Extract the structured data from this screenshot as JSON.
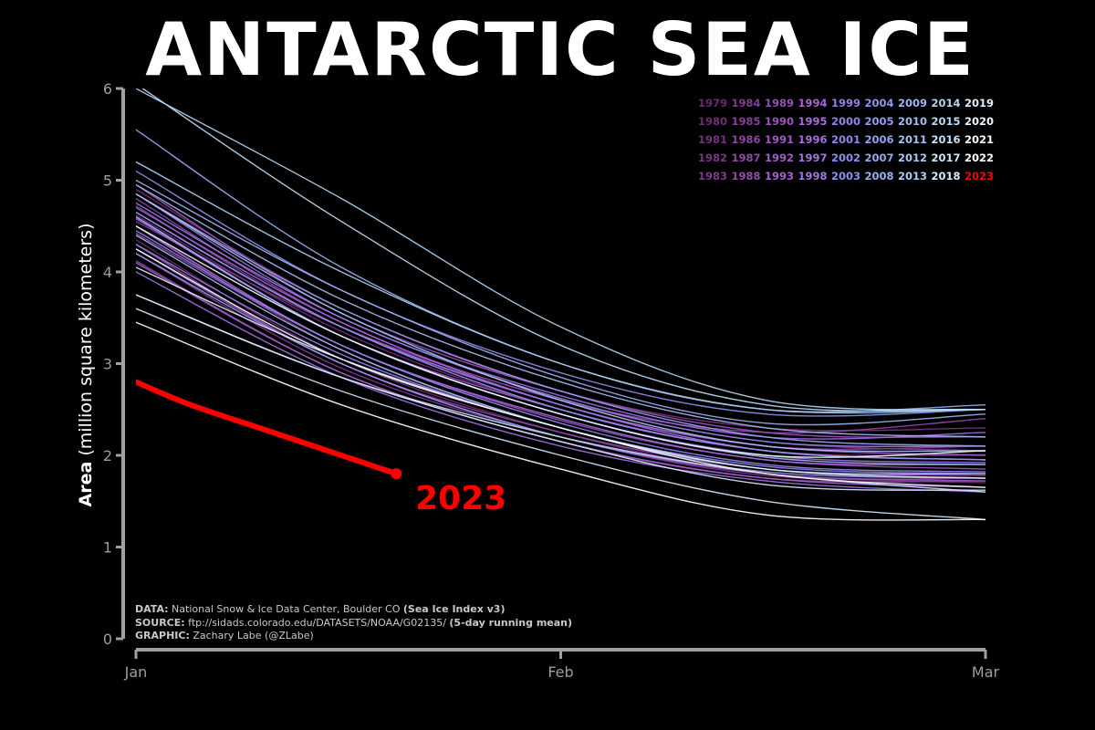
{
  "title": "ANTARCTIC SEA ICE",
  "ylabel_bold": "Area",
  "ylabel_rest": " (million square kilometers)",
  "source": {
    "line1_label": "DATA:",
    "line1_text": " National Snow & Ice Data Center, Boulder CO ",
    "line1_extra": "(Sea Ice Index v3)",
    "line2_label": "SOURCE:",
    "line2_text": " ftp://sidads.colorado.edu/DATASETS/NOAA/G02135/ ",
    "line2_extra": "(5-day running mean)",
    "line3_label": "GRAPHIC:",
    "line3_text": " Zachary Labe (@ZLabe)"
  },
  "highlight_label": "2023",
  "colors": {
    "background": "#000000",
    "axis": "#a0a0a0",
    "highlight": "#ff0000"
  },
  "chart_data": {
    "type": "line",
    "x_tick_labels": [
      "Jan",
      "Feb",
      "Mar"
    ],
    "x_tick_days": [
      1,
      32,
      63
    ],
    "xlim": [
      1,
      63
    ],
    "y_ticks": [
      0,
      1,
      2,
      3,
      4,
      5,
      6
    ],
    "ylim": [
      0,
      6
    ],
    "legend": {
      "placement": "top-right",
      "years": [
        [
          1979,
          1984,
          1989,
          1994,
          1999,
          2004,
          2009,
          2014,
          2019
        ],
        [
          1980,
          1985,
          1990,
          1995,
          2000,
          2005,
          2010,
          2015,
          2020
        ],
        [
          1981,
          1986,
          1991,
          1996,
          2001,
          2006,
          2011,
          2016,
          2021
        ],
        [
          1982,
          1987,
          1992,
          1997,
          2002,
          2007,
          2012,
          2017,
          2022
        ],
        [
          1983,
          1988,
          1993,
          1998,
          2003,
          2008,
          2013,
          2018,
          2023
        ]
      ]
    },
    "series": [
      {
        "name": "1979",
        "x": [
          1,
          16,
          32,
          47,
          63
        ],
        "values": [
          4.35,
          3.05,
          2.25,
          1.8,
          1.7
        ]
      },
      {
        "name": "1980",
        "x": [
          1,
          16,
          32,
          47,
          63
        ],
        "values": [
          4.62,
          3.35,
          2.5,
          2.05,
          2.0
        ]
      },
      {
        "name": "1981",
        "x": [
          1,
          16,
          32,
          47,
          63
        ],
        "values": [
          4.9,
          3.6,
          2.7,
          2.3,
          2.3
        ]
      },
      {
        "name": "1982",
        "x": [
          1,
          16,
          32,
          47,
          63
        ],
        "values": [
          4.5,
          3.15,
          2.3,
          1.85,
          1.8
        ]
      },
      {
        "name": "1983",
        "x": [
          1,
          16,
          32,
          47,
          63
        ],
        "values": [
          4.2,
          2.95,
          2.2,
          1.78,
          1.75
        ]
      },
      {
        "name": "1984",
        "x": [
          1,
          16,
          32,
          47,
          63
        ],
        "values": [
          4.55,
          3.4,
          2.6,
          2.15,
          2.05
        ]
      },
      {
        "name": "1985",
        "x": [
          1,
          16,
          32,
          47,
          63
        ],
        "values": [
          4.72,
          3.4,
          2.55,
          2.1,
          2.1
        ]
      },
      {
        "name": "1986",
        "x": [
          1,
          16,
          32,
          47,
          63
        ],
        "values": [
          4.12,
          2.9,
          2.15,
          1.75,
          1.72
        ]
      },
      {
        "name": "1987",
        "x": [
          1,
          16,
          32,
          47,
          63
        ],
        "values": [
          4.8,
          3.45,
          2.6,
          2.25,
          2.4
        ]
      },
      {
        "name": "1988",
        "x": [
          1,
          16,
          32,
          47,
          63
        ],
        "values": [
          4.3,
          3.0,
          2.25,
          1.85,
          1.78
        ]
      },
      {
        "name": "1989",
        "x": [
          1,
          16,
          32,
          47,
          63
        ],
        "values": [
          4.42,
          3.2,
          2.38,
          1.95,
          1.85
        ]
      },
      {
        "name": "1990",
        "x": [
          1,
          16,
          32,
          47,
          63
        ],
        "values": [
          4.95,
          3.55,
          2.7,
          2.25,
          2.2
        ]
      },
      {
        "name": "1991",
        "x": [
          1,
          16,
          32,
          47,
          63
        ],
        "values": [
          4.25,
          3.0,
          2.2,
          1.8,
          1.72
        ]
      },
      {
        "name": "1992",
        "x": [
          1,
          16,
          32,
          47,
          63
        ],
        "values": [
          4.6,
          3.3,
          2.5,
          2.05,
          1.95
        ]
      },
      {
        "name": "1993",
        "x": [
          1,
          16,
          32,
          47,
          63
        ],
        "values": [
          4.1,
          2.9,
          2.15,
          1.75,
          1.65
        ]
      },
      {
        "name": "1994",
        "x": [
          1,
          16,
          32,
          47,
          63
        ],
        "values": [
          4.7,
          3.45,
          2.55,
          2.1,
          2.0
        ]
      },
      {
        "name": "1995",
        "x": [
          1,
          16,
          32,
          47,
          63
        ],
        "values": [
          4.5,
          3.2,
          2.4,
          1.95,
          1.9
        ]
      },
      {
        "name": "1996",
        "x": [
          1,
          16,
          32,
          47,
          63
        ],
        "values": [
          4.85,
          3.5,
          2.65,
          2.2,
          2.25
        ]
      },
      {
        "name": "1997",
        "x": [
          1,
          16,
          32,
          47,
          63
        ],
        "values": [
          4.0,
          2.85,
          2.1,
          1.72,
          1.6
        ]
      },
      {
        "name": "1998",
        "x": [
          1,
          16,
          32,
          47,
          63
        ],
        "values": [
          4.58,
          3.3,
          2.45,
          2.0,
          1.92
        ]
      },
      {
        "name": "1999",
        "x": [
          1,
          16,
          32,
          47,
          63
        ],
        "values": [
          4.65,
          3.4,
          2.55,
          2.05,
          1.95
        ]
      },
      {
        "name": "2000",
        "x": [
          1,
          16,
          32,
          47,
          63
        ],
        "values": [
          4.3,
          3.1,
          2.3,
          1.88,
          1.8
        ]
      },
      {
        "name": "2001",
        "x": [
          1,
          16,
          32,
          47,
          63
        ],
        "values": [
          4.75,
          3.5,
          2.62,
          2.15,
          2.1
        ]
      },
      {
        "name": "2002",
        "x": [
          1,
          16,
          32,
          47,
          63
        ],
        "values": [
          4.45,
          3.2,
          2.35,
          1.9,
          1.82
        ]
      },
      {
        "name": "2003",
        "x": [
          1,
          16,
          32,
          47,
          63
        ],
        "values": [
          5.1,
          3.8,
          2.9,
          2.45,
          2.5
        ]
      },
      {
        "name": "2004",
        "x": [
          1,
          16,
          32,
          47,
          63
        ],
        "values": [
          4.65,
          3.4,
          2.5,
          2.05,
          1.95
        ]
      },
      {
        "name": "2005",
        "x": [
          1,
          16,
          32,
          47,
          63
        ],
        "values": [
          4.2,
          3.0,
          2.2,
          1.82,
          1.75
        ]
      },
      {
        "name": "2006",
        "x": [
          1,
          16,
          32,
          47,
          63
        ],
        "values": [
          4.85,
          3.6,
          2.7,
          2.2,
          2.1
        ]
      },
      {
        "name": "2007",
        "x": [
          1,
          16,
          32,
          47,
          63
        ],
        "values": [
          5.55,
          4.05,
          3.0,
          2.5,
          2.55
        ]
      },
      {
        "name": "2008",
        "x": [
          1,
          16,
          32,
          47,
          63
        ],
        "values": [
          5.0,
          3.8,
          2.85,
          2.35,
          2.45
        ]
      },
      {
        "name": "2009",
        "x": [
          1,
          16,
          32,
          47,
          63
        ],
        "values": [
          4.6,
          3.3,
          2.45,
          1.98,
          1.9
        ]
      },
      {
        "name": "2010",
        "x": [
          1,
          16,
          32,
          47,
          63
        ],
        "values": [
          4.95,
          3.7,
          2.8,
          2.3,
          2.2
        ]
      },
      {
        "name": "2011",
        "x": [
          1,
          16,
          32,
          47,
          63
        ],
        "values": [
          4.4,
          3.15,
          2.3,
          1.85,
          1.8
        ]
      },
      {
        "name": "2012",
        "x": [
          1,
          16,
          32,
          47,
          63
        ],
        "values": [
          4.85,
          3.55,
          2.6,
          2.1,
          2.05
        ]
      },
      {
        "name": "2013",
        "x": [
          1,
          16,
          32,
          47,
          63
        ],
        "values": [
          5.2,
          4.0,
          3.0,
          2.5,
          2.5
        ]
      },
      {
        "name": "2014",
        "x": [
          1,
          16,
          32,
          47,
          63
        ],
        "values": [
          6.0,
          4.8,
          3.4,
          2.6,
          2.5
        ]
      },
      {
        "name": "2015",
        "x": [
          1,
          16,
          32,
          47,
          63
        ],
        "values": [
          6.05,
          4.55,
          3.2,
          2.55,
          2.5
        ]
      },
      {
        "name": "2016",
        "x": [
          1,
          16,
          32,
          47,
          63
        ],
        "values": [
          3.75,
          2.85,
          2.2,
          1.8,
          1.6
        ]
      },
      {
        "name": "2017",
        "x": [
          1,
          16,
          32,
          47,
          63
        ],
        "values": [
          3.6,
          2.7,
          2.0,
          1.5,
          1.3
        ]
      },
      {
        "name": "2018",
        "x": [
          1,
          16,
          32,
          47,
          63
        ],
        "values": [
          3.75,
          2.85,
          2.15,
          1.68,
          1.62
        ]
      },
      {
        "name": "2019",
        "x": [
          1,
          16,
          32,
          47,
          63
        ],
        "values": [
          4.05,
          3.05,
          2.3,
          1.85,
          1.75
        ]
      },
      {
        "name": "2020",
        "x": [
          1,
          16,
          32,
          47,
          63
        ],
        "values": [
          4.5,
          3.3,
          2.45,
          2.0,
          2.05
        ]
      },
      {
        "name": "2021",
        "x": [
          1,
          16,
          32,
          47,
          63
        ],
        "values": [
          4.25,
          3.05,
          2.3,
          1.8,
          1.65
        ]
      },
      {
        "name": "2022",
        "x": [
          1,
          16,
          32,
          47,
          63
        ],
        "values": [
          3.45,
          2.55,
          1.85,
          1.35,
          1.3
        ]
      },
      {
        "name": "2023",
        "x": [
          1,
          5,
          10,
          15,
          20
        ],
        "values": [
          2.8,
          2.55,
          2.3,
          2.05,
          1.8
        ]
      }
    ]
  }
}
